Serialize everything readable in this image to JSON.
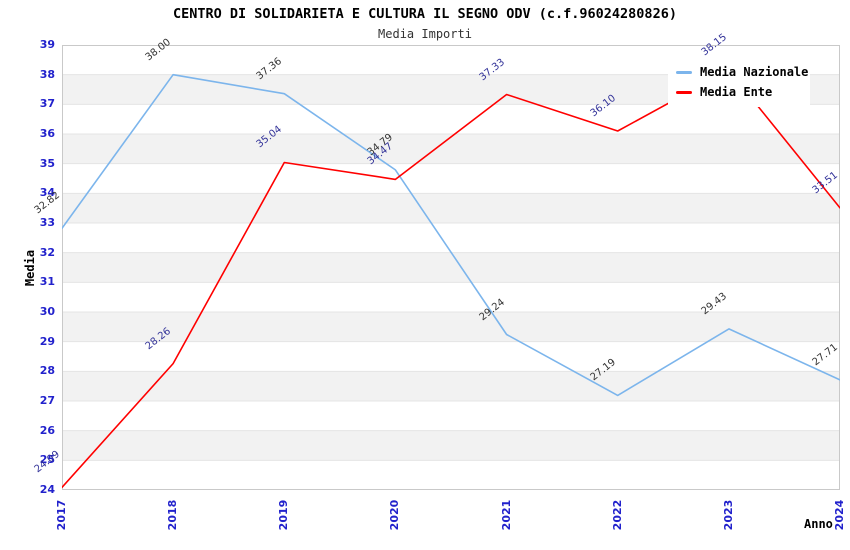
{
  "header": {
    "title": "CENTRO DI SOLIDARIETA E CULTURA IL SEGNO ODV (c.f.96024280826)",
    "subtitle": "Media Importi"
  },
  "chart_data": {
    "type": "line",
    "categories": [
      "2017",
      "2018",
      "2019",
      "2020",
      "2021",
      "2022",
      "2023",
      "2024"
    ],
    "series": [
      {
        "name": "Media Nazionale",
        "color": "#7cb5ec",
        "label_color": "#333333",
        "values": [
          32.82,
          38.0,
          37.36,
          34.79,
          29.24,
          27.19,
          29.43,
          27.71
        ]
      },
      {
        "name": "Media Ente",
        "color": "#ff0000",
        "label_color": "#333399",
        "values": [
          24.09,
          28.26,
          35.04,
          34.47,
          37.33,
          36.1,
          38.15,
          33.51
        ]
      }
    ],
    "title": "CENTRO DI SOLIDARIETA E CULTURA IL SEGNO ODV (c.f.96024280826)",
    "subtitle": "Media Importi",
    "xlabel": "Anno",
    "ylabel": "Media",
    "ylim": [
      24,
      39
    ],
    "ytick_step": 1,
    "grid": true,
    "alternating_bands": true,
    "legend_position": "top-right",
    "colors": {
      "tick_label": "#2222cc",
      "band": "#f2f2f2",
      "gridline": "#e4e4e4",
      "plot_border": "#c9c9c9",
      "title": "#000000",
      "subtitle": "#333333"
    }
  }
}
